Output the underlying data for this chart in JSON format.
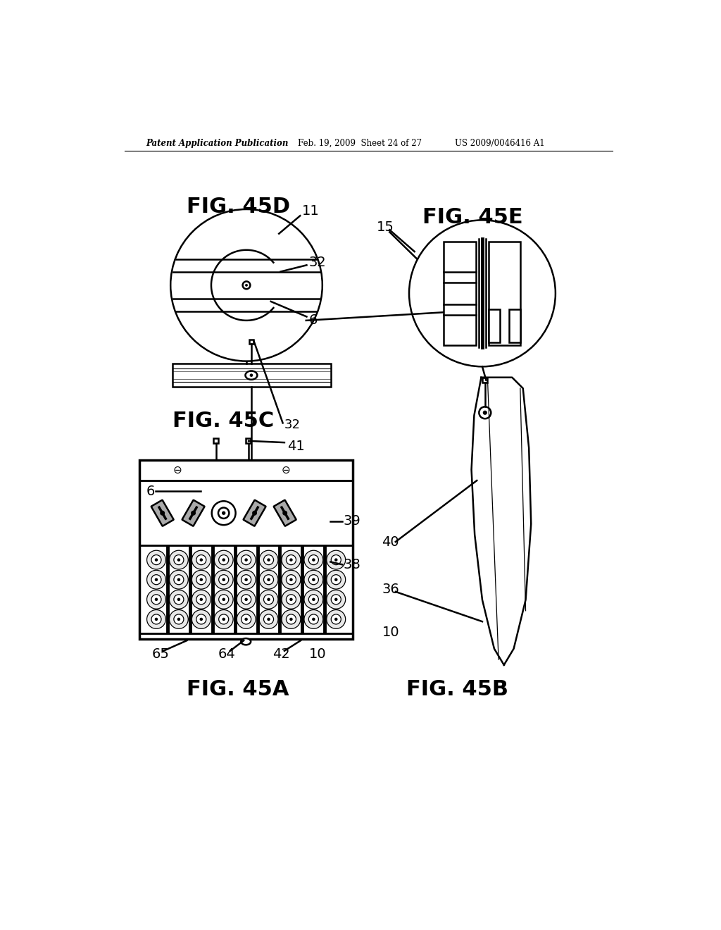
{
  "bg_color": "#ffffff",
  "header_left": "Patent Application Publication",
  "header_mid": "Feb. 19, 2009  Sheet 24 of 27",
  "header_right": "US 2009/0046416 A1",
  "fig45D_label": "FIG. 45D",
  "fig45E_label": "FIG. 45E",
  "fig45C_label": "FIG. 45C",
  "fig45A_label": "FIG. 45A",
  "fig45B_label": "FIG. 45B",
  "line_color": "#000000"
}
